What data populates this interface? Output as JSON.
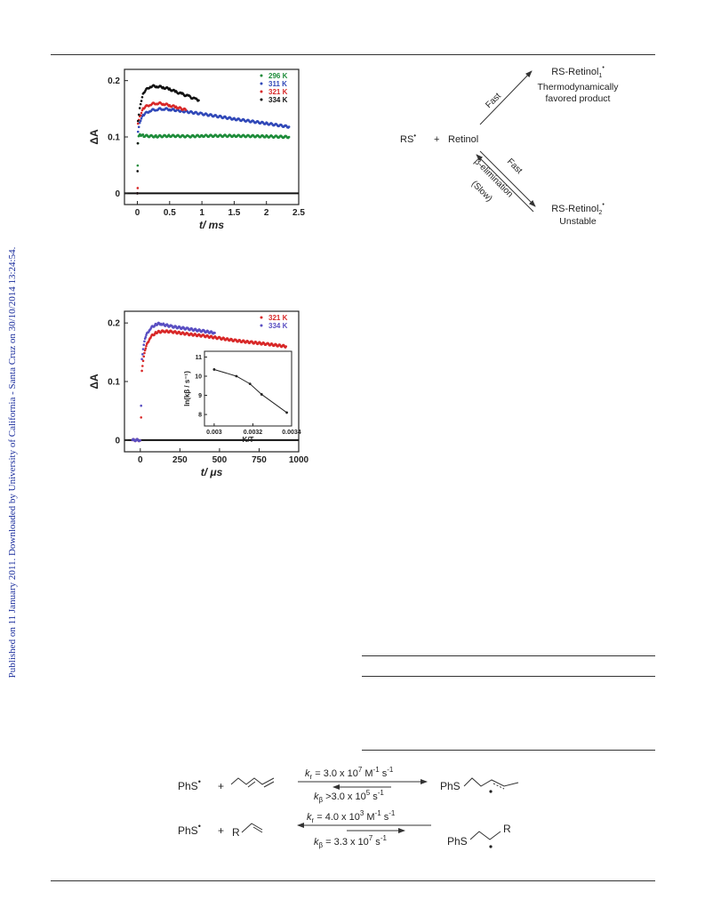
{
  "sidebar": {
    "text": "Published on 11 January 2011. Downloaded by University of California - Santa Cruz on 30/10/2014 13:24:54."
  },
  "chart_data": [
    {
      "type": "scatter",
      "ylabel": "ΔA",
      "xlabel": "t/ ms",
      "xlim": [
        -0.2,
        2.5
      ],
      "ylim": [
        -0.02,
        0.22
      ],
      "xticks": [
        "0",
        "0.5",
        "1",
        "1.5",
        "2",
        "2.5"
      ],
      "yticks": [
        "0",
        "0.1",
        "0.2"
      ],
      "legend_position": "top-right",
      "series": [
        {
          "name": "296 K",
          "color": "#1e8c3a",
          "x": [
            0,
            0.005,
            0.01,
            0.02,
            0.05,
            0.1,
            0.3,
            0.5,
            0.8,
            1.0,
            1.5,
            2.0,
            2.35
          ],
          "y": [
            0.0,
            0.05,
            0.09,
            0.103,
            0.104,
            0.102,
            0.101,
            0.102,
            0.101,
            0.102,
            0.102,
            0.101,
            0.1
          ]
        },
        {
          "name": "311 K",
          "color": "#3048b8",
          "x": [
            0,
            0.01,
            0.05,
            0.1,
            0.2,
            0.3,
            0.4,
            0.5,
            0.7,
            1.0,
            1.5,
            2.0,
            2.35
          ],
          "y": [
            0.0,
            0.11,
            0.13,
            0.14,
            0.147,
            0.149,
            0.15,
            0.149,
            0.146,
            0.141,
            0.132,
            0.124,
            0.118
          ]
        },
        {
          "name": "321 K",
          "color": "#d82828",
          "x": [
            0,
            0.005,
            0.01,
            0.05,
            0.1,
            0.2,
            0.3,
            0.4,
            0.5,
            0.6,
            0.75
          ],
          "y": [
            0.0,
            0.01,
            0.125,
            0.14,
            0.152,
            0.158,
            0.16,
            0.159,
            0.156,
            0.153,
            0.148
          ]
        },
        {
          "name": "334 K",
          "color": "#111111",
          "x": [
            0,
            0.003,
            0.006,
            0.01,
            0.05,
            0.1,
            0.2,
            0.3,
            0.4,
            0.5,
            0.6,
            0.7,
            0.8,
            0.9,
            0.95
          ],
          "y": [
            0.0,
            0.04,
            0.09,
            0.13,
            0.16,
            0.18,
            0.19,
            0.19,
            0.188,
            0.185,
            0.18,
            0.176,
            0.172,
            0.167,
            0.165
          ]
        }
      ]
    },
    {
      "type": "scatter",
      "ylabel": "ΔA",
      "xlabel": "t/ μs",
      "xlim": [
        -100,
        1000
      ],
      "ylim": [
        -0.02,
        0.22
      ],
      "xticks": [
        "0",
        "250",
        "500",
        "750",
        "1000"
      ],
      "yticks": [
        "0",
        "0.1",
        "0.2"
      ],
      "legend_position": "top-right",
      "series": [
        {
          "name": "321 K",
          "color": "#d82828",
          "x": [
            -50,
            0,
            5,
            10,
            30,
            60,
            100,
            150,
            200,
            300,
            400,
            500,
            600,
            700,
            800,
            920
          ],
          "y": [
            0.0,
            0.0,
            0.04,
            0.12,
            0.155,
            0.175,
            0.184,
            0.186,
            0.185,
            0.181,
            0.178,
            0.174,
            0.17,
            0.167,
            0.164,
            0.16
          ]
        },
        {
          "name": "334 K",
          "color": "#5a4fc2",
          "x": [
            -50,
            0,
            5,
            10,
            30,
            60,
            100,
            130,
            150,
            200,
            300,
            400,
            470
          ],
          "y": [
            0.0,
            0.0,
            0.06,
            0.14,
            0.175,
            0.19,
            0.198,
            0.199,
            0.197,
            0.194,
            0.19,
            0.186,
            0.183
          ]
        }
      ],
      "inset": {
        "type": "line",
        "xlabel": "K/T",
        "ylabel": "ln(kβ / s⁻¹)",
        "xticks": [
          "0.003",
          "0.0032",
          "0.0034"
        ],
        "yticks": [
          "8",
          "9",
          "10",
          "11"
        ],
        "xlim": [
          0.00295,
          0.0034
        ],
        "ylim": [
          7.4,
          11.3
        ],
        "x": [
          0.003,
          0.003115,
          0.003185,
          0.003245,
          0.003375
        ],
        "y": [
          10.35,
          10.0,
          9.6,
          9.05,
          8.1
        ]
      }
    }
  ],
  "scheme1": {
    "rs": "RS",
    "plus": "+",
    "retinol": "Retinol",
    "fast_top": "Fast",
    "product1": "RS-Retinol",
    "product1_sub": "1",
    "product1_line2": "Thermodynamically",
    "product1_line3": "favored product",
    "fast_bottom": "Fast",
    "beta_elim": "β-elimination",
    "slow": "(Slow)",
    "product2": "RS-Retinol",
    "product2_sub": "2",
    "product2_line2": "Unstable"
  },
  "scheme2": {
    "phs": "PhS",
    "plus": "+",
    "r1_kr": "k",
    "r1_kr_sub": "r",
    "r1_kr_val": " = 3.0 x 10",
    "r1_kr_exp": "7",
    "r1_kr_unit": " M",
    "r1_kr_unit_exp": "-1",
    "r1_kr_unit2": " s",
    "r1_kr_unit2_exp": "-1",
    "r1_kb": "k",
    "r1_kb_sub": "β",
    "r1_kb_val": " >3.0 x 10",
    "r1_kb_exp": "5",
    "r1_kb_unit": " s",
    "r1_kb_unit_exp": "-1",
    "r1_product": "PhS",
    "r2_r": "R",
    "r2_kr": "k",
    "r2_kr_sub": "r",
    "r2_kr_val": " = 4.0 x 10",
    "r2_kr_exp": "3",
    "r2_kr_unit": " M",
    "r2_kr_unit_exp": "-1",
    "r2_kr_unit2": " s",
    "r2_kr_unit2_exp": "-1",
    "r2_kb": "k",
    "r2_kb_sub": "β",
    "r2_kb_val": " = 3.3 x 10",
    "r2_kb_exp": "7",
    "r2_kb_unit": " s",
    "r2_kb_unit_exp": "-1",
    "r2_product": "PhS",
    "r2_product_r": "R"
  }
}
